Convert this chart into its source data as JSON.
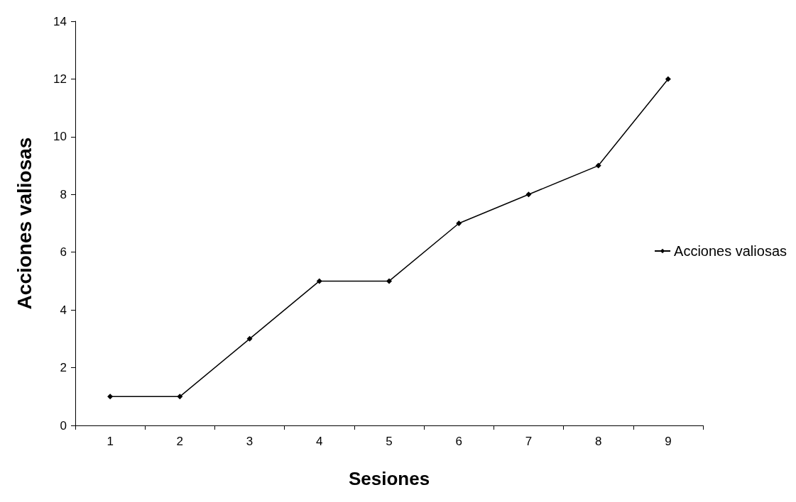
{
  "chart_data": {
    "type": "line",
    "xlabel": "Sesiones",
    "ylabel": "Acciones valiosas",
    "categories": [
      "1",
      "2",
      "3",
      "4",
      "5",
      "6",
      "7",
      "8",
      "9"
    ],
    "series": [
      {
        "name": "Acciones valiosas",
        "color": "#000000",
        "values": [
          1,
          1,
          3,
          5,
          5,
          7,
          8,
          9,
          12
        ]
      }
    ],
    "ylim": [
      0,
      14
    ],
    "yticks": [
      0,
      2,
      4,
      6,
      8,
      10,
      12,
      14
    ],
    "legend": "right",
    "marker": "diamond"
  }
}
